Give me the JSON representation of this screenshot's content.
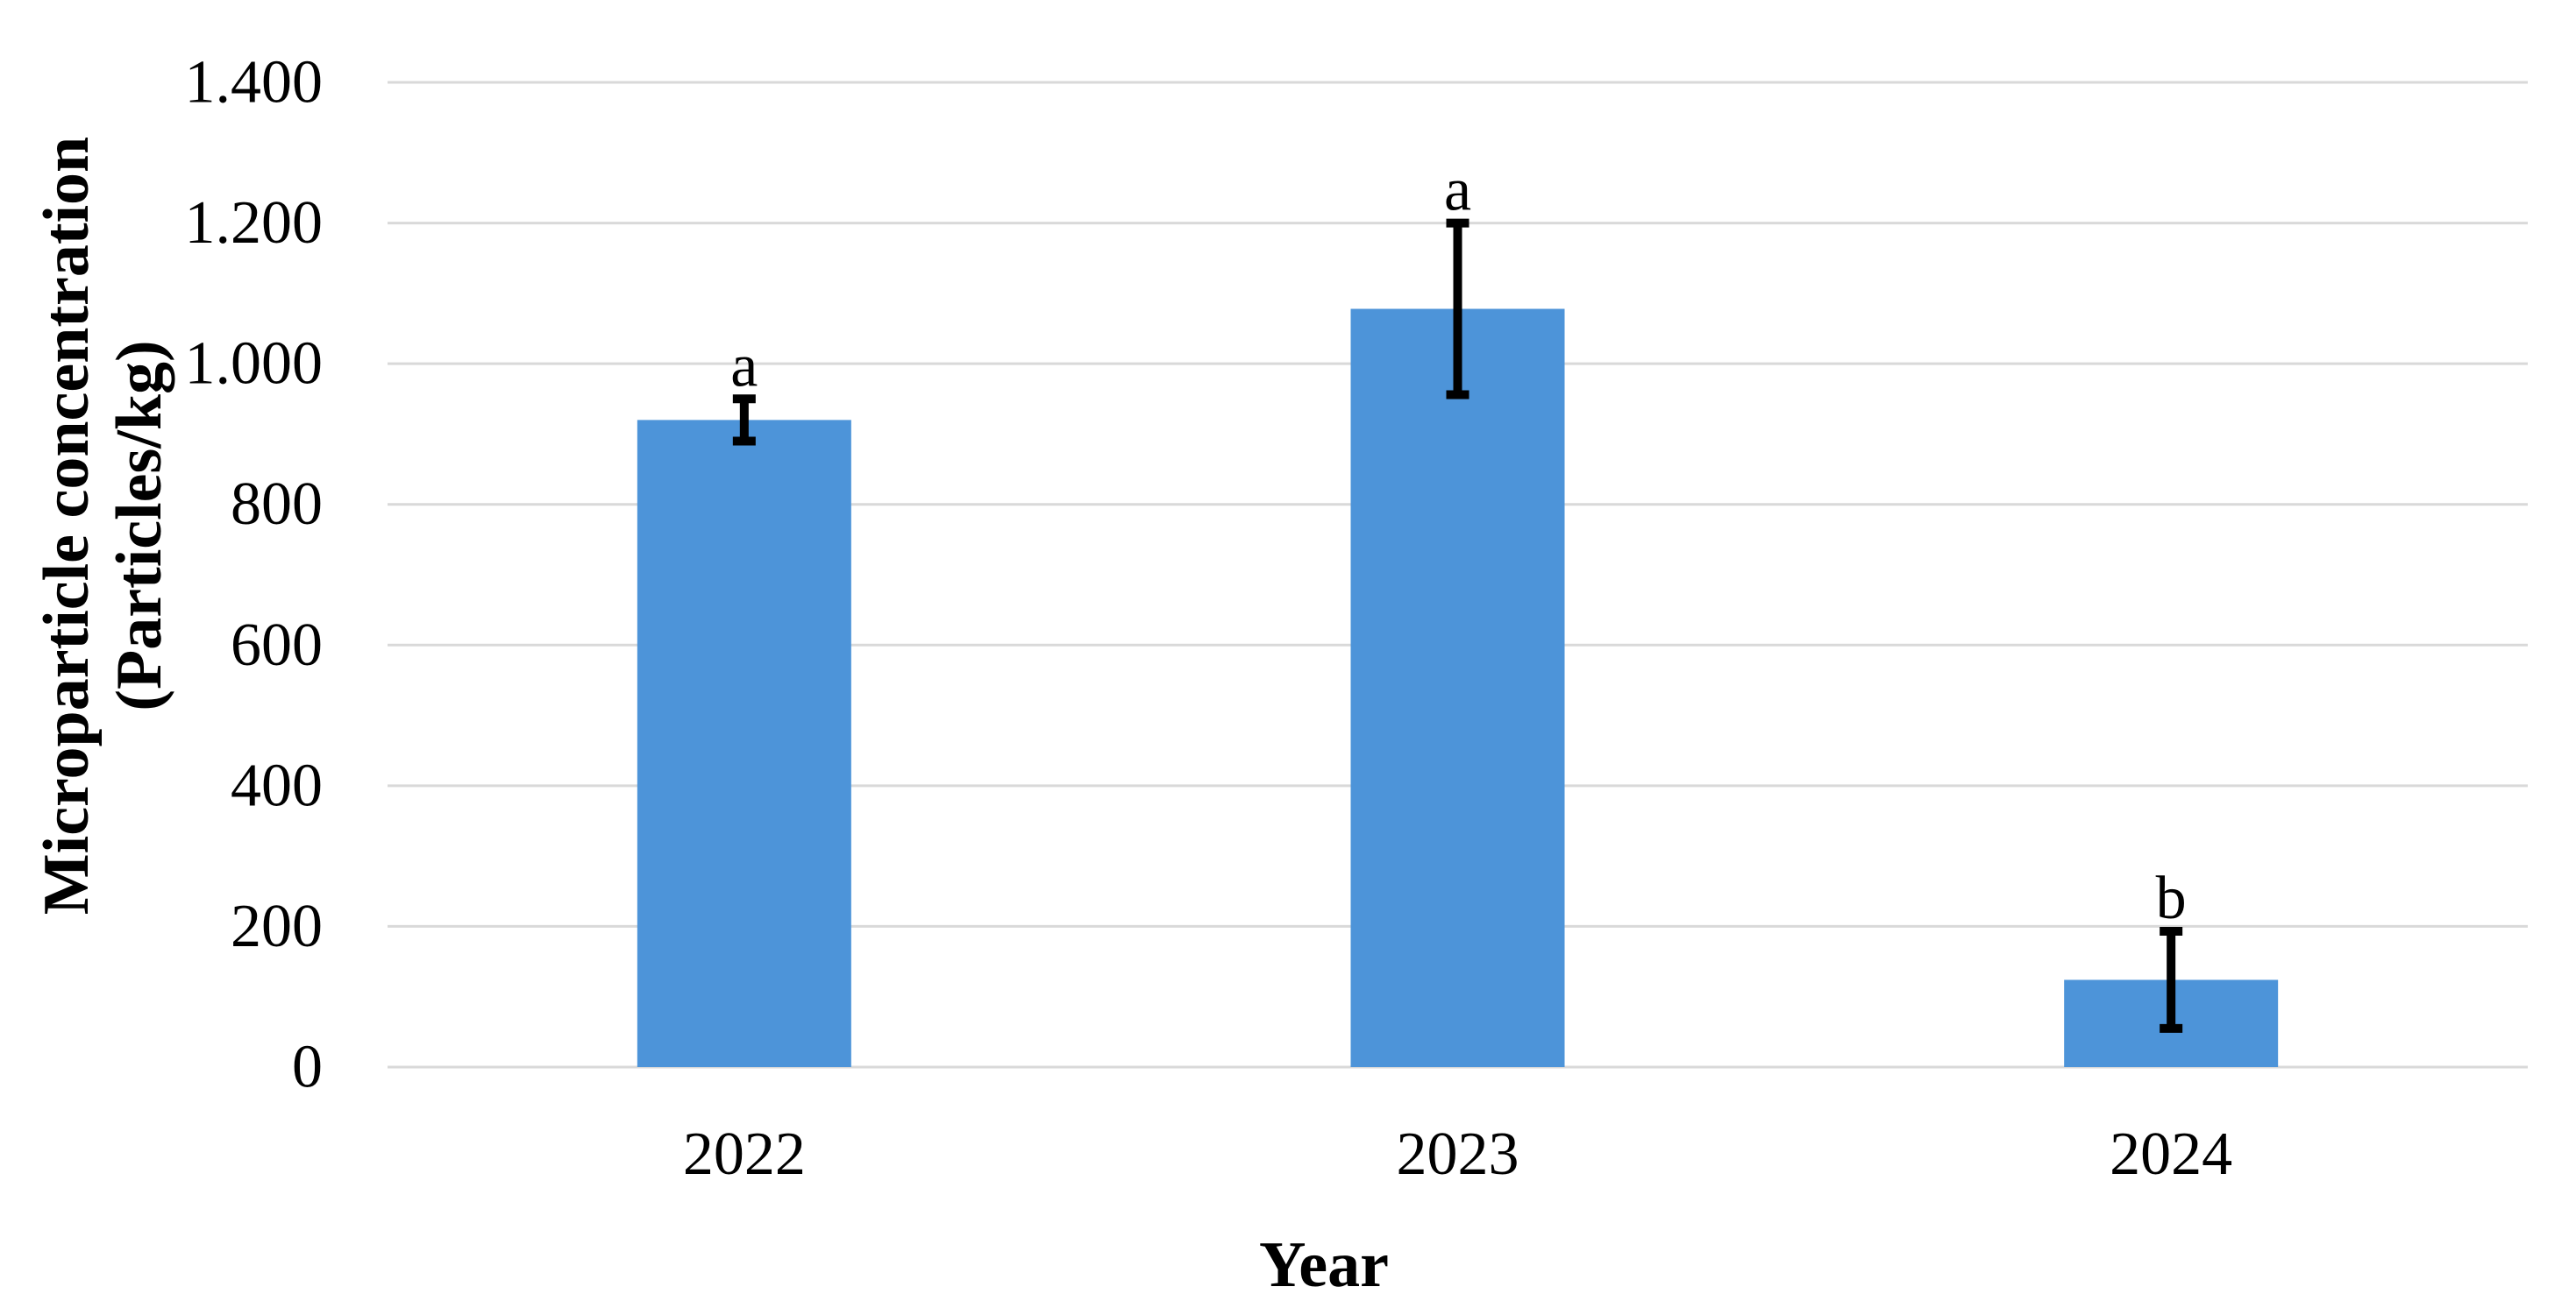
{
  "figure": {
    "background_color": "#FFFFFF"
  },
  "chart_data": {
    "type": "bar",
    "title": "",
    "xlabel": "Year",
    "ylabel": "Microparticle concentration (Particles/kg)",
    "ylabel_line1": "Microparticle concentration",
    "ylabel_line2": "(Particles/kg)",
    "categories": [
      "2022",
      "2023",
      "2024"
    ],
    "values": [
      920,
      1078,
      124
    ],
    "error_bars": [
      30,
      122,
      69
    ],
    "significance_letters": [
      "a",
      "a",
      "b"
    ],
    "ylim": [
      0,
      1400
    ],
    "ytick_step": 200,
    "ytick_labels": [
      "0",
      "200",
      "400",
      "600",
      "800",
      "1.000",
      "1.200",
      "1.400"
    ],
    "grid": "horizontal",
    "legend_position": "none",
    "bar_color": "#4D94D9",
    "gridline_color": "#D9D9D9",
    "error_bar_color": "#000000",
    "text_color": "#000000"
  }
}
